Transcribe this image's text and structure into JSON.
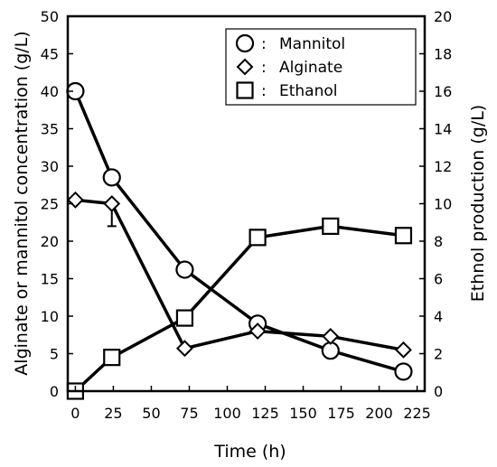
{
  "chart_data": {
    "type": "line",
    "xlabel": "Time (h)",
    "ylabel_left": "Alginate or mannitol concentration (g/L)",
    "ylabel_right": "Ethnol production (g/L)",
    "xlim": [
      -5,
      230
    ],
    "xticks": [
      "0",
      "25",
      "50",
      "75",
      "100",
      "125",
      "150",
      "175",
      "200",
      "225"
    ],
    "ylim_left": [
      0,
      50
    ],
    "yticks_left": [
      "0",
      "5",
      "10",
      "15",
      "20",
      "25",
      "30",
      "35",
      "40",
      "45",
      "50"
    ],
    "ylim_right": [
      0,
      20
    ],
    "yticks_right": [
      "0",
      "2",
      "4",
      "6",
      "8",
      "10",
      "12",
      "14",
      "16",
      "18",
      "20"
    ],
    "grid": false,
    "legend_position": "top-right",
    "legend_separator": ":",
    "series": [
      {
        "name": "Mannitol",
        "marker": "circle",
        "axis": "left",
        "x": [
          0,
          24,
          72,
          120,
          168,
          216
        ],
        "y": [
          40,
          28.5,
          16.2,
          9.0,
          5.4,
          2.6
        ]
      },
      {
        "name": "Alginate",
        "marker": "diamond",
        "axis": "left",
        "x": [
          0,
          24,
          72,
          120,
          168,
          216
        ],
        "y": [
          25.5,
          25.0,
          5.7,
          8.0,
          7.3,
          5.5
        ]
      },
      {
        "name": "Ethanol",
        "marker": "square",
        "axis": "right",
        "x": [
          0,
          24,
          72,
          120,
          168,
          216
        ],
        "y": [
          0,
          1.8,
          3.9,
          8.2,
          8.8,
          8.3
        ]
      }
    ],
    "error_bars": [
      {
        "series": "Alginate",
        "x": 24,
        "low": 22.0,
        "high": 25.0
      }
    ]
  }
}
